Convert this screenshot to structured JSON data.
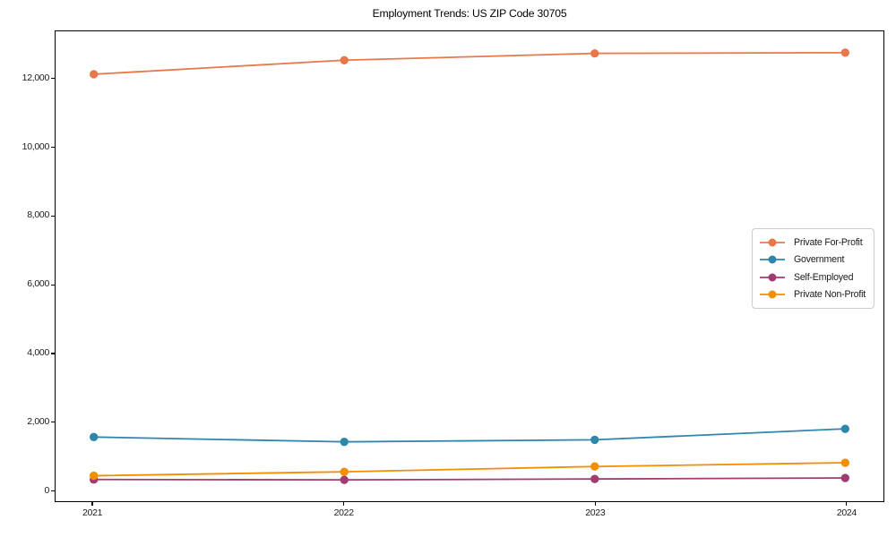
{
  "chart_data": {
    "type": "line",
    "title": "Employment Trends: US ZIP Code 30705",
    "xlabel": "",
    "ylabel": "",
    "x_labels": [
      "2021",
      "2022",
      "2023",
      "2024"
    ],
    "x_values": [
      2021,
      2022,
      2023,
      2024
    ],
    "series": [
      {
        "name": "Private For-Profit",
        "color": "#E8784B",
        "values": [
          12150,
          12560,
          12760,
          12780
        ]
      },
      {
        "name": "Government",
        "color": "#2E86AB",
        "values": [
          1550,
          1410,
          1470,
          1790
        ]
      },
      {
        "name": "Self-Employed",
        "color": "#A23B72",
        "values": [
          310,
          300,
          325,
          355
        ]
      },
      {
        "name": "Private Non-Profit",
        "color": "#F18F01",
        "values": [
          420,
          535,
          690,
          800
        ]
      }
    ],
    "y_ticks": [
      {
        "value": 0,
        "label": "0"
      },
      {
        "value": 2000,
        "label": "2,000"
      },
      {
        "value": 4000,
        "label": "4,000"
      },
      {
        "value": 6000,
        "label": "6,000"
      },
      {
        "value": 8000,
        "label": "8,000"
      },
      {
        "value": 10000,
        "label": "10,000"
      },
      {
        "value": 12000,
        "label": "12,000"
      }
    ],
    "xlim": [
      2020.85,
      2024.15
    ],
    "ylim": [
      -324,
      13404
    ],
    "grid": false,
    "legend_position": "center-right",
    "marker": "circle",
    "background_color": "#ffffff",
    "axis_color": "#000000",
    "text_color": "#1a1a1a"
  }
}
